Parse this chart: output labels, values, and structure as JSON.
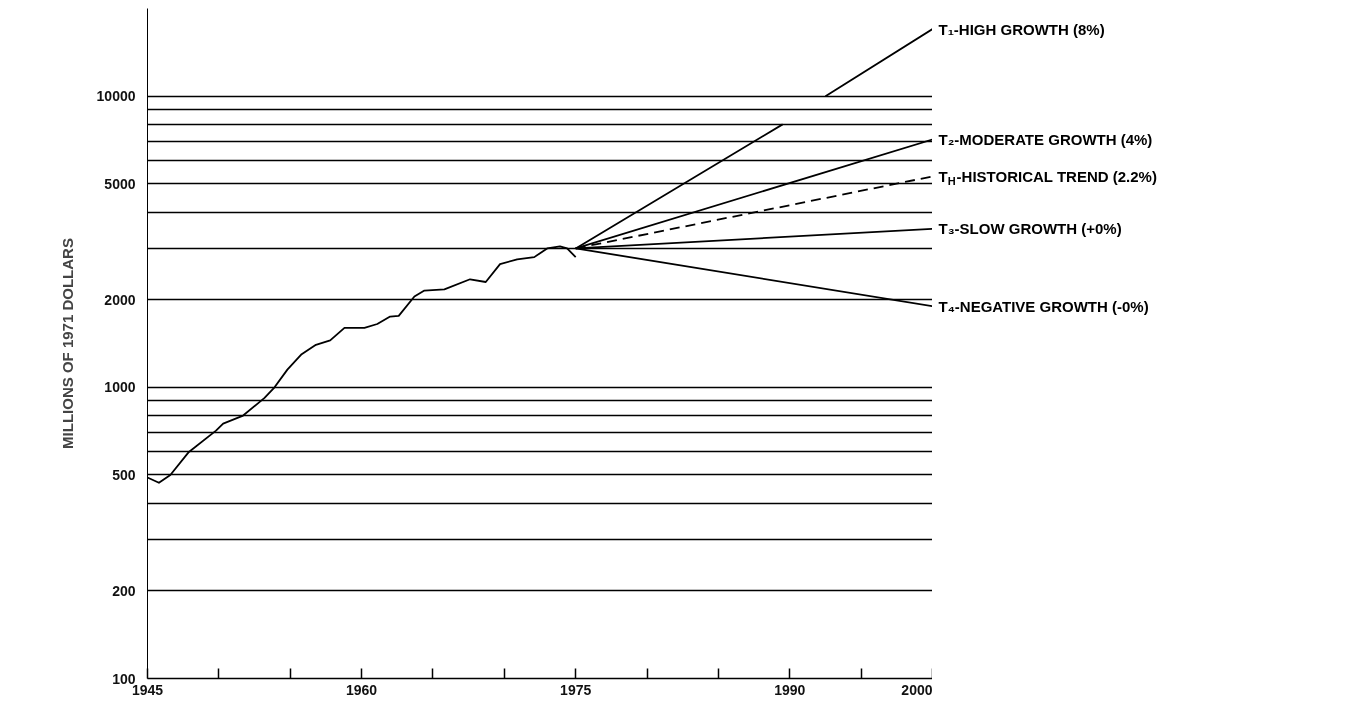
{
  "chart_data": {
    "type": "line",
    "ylabel": "MILLIONS OF 1971 DOLLARS",
    "log": "y",
    "xlim": [
      1945,
      2000
    ],
    "xticks": [
      1945,
      {
        "value": 1950,
        "label": null
      },
      {
        "value": 1955,
        "label": null
      },
      1960,
      {
        "value": 1965,
        "label": null
      },
      {
        "value": 1970,
        "label": null
      },
      1975,
      {
        "value": 1980,
        "label": null
      },
      {
        "value": 1985,
        "label": null
      },
      1990,
      {
        "value": 1995,
        "label": null
      },
      2000
    ],
    "ylim": [
      100,
      20000
    ],
    "yticks": [
      100,
      200,
      {
        "value": 300,
        "label": null
      },
      {
        "value": 400,
        "label": null
      },
      500,
      {
        "value": 600,
        "label": null
      },
      {
        "value": 700,
        "label": null
      },
      {
        "value": 800,
        "label": null
      },
      {
        "value": 900,
        "label": null
      },
      1000,
      2000,
      {
        "value": 3000,
        "label": null
      },
      {
        "value": 4000,
        "label": null
      },
      5000,
      {
        "value": 6000,
        "label": null
      },
      {
        "value": 7000,
        "label": null
      },
      {
        "value": 8000,
        "label": null
      },
      {
        "value": 9000,
        "label": null
      },
      10000
    ],
    "grid": "y",
    "marker": "none",
    "series": [
      {
        "color": "#000000",
        "x": [
          1945,
          1945.8,
          1946.6,
          1947.9,
          1949.8,
          1950.3,
          1951.7,
          1953.2,
          1953.9,
          1954.8,
          1955.8,
          1956.8,
          1957.8,
          1958.8,
          1960.2,
          1961.1,
          1962.0,
          1962.6,
          1963.7,
          1964.4,
          1965.8,
          1967.6,
          1968.7,
          1969.7,
          1970.9,
          1972.1,
          1973.0,
          1973.9,
          1974.4,
          1975.0
        ],
        "values": [
          490,
          470,
          500,
          600,
          710,
          750,
          800,
          920,
          1000,
          1150,
          1300,
          1400,
          1450,
          1600,
          1600,
          1650,
          1750,
          1760,
          2050,
          2150,
          2170,
          2350,
          2300,
          2650,
          2750,
          2800,
          3000,
          3050,
          3000,
          2800
        ]
      },
      {
        "name": "T₁-HIGH GROWTH (8%)",
        "color": "#000000",
        "x": [
          1975,
          1989.5,
          1991,
          1992.5,
          2000
        ],
        "values": [
          3000,
          8000,
          null,
          10000,
          17000
        ]
      },
      {
        "name": "T₂-MODERATE GROWTH (4%)",
        "color": "#000000",
        "x": [
          1975,
          2000
        ],
        "values": [
          3000,
          7100
        ]
      },
      {
        "name": "T$_{H}$-HISTORICAL TREND (2.2%)",
        "color": "#000000",
        "line_style": "dashed",
        "x": [
          1975,
          2000
        ],
        "values": [
          3000,
          5300
        ]
      },
      {
        "name": "T₃-SLOW GROWTH (+0%)",
        "color": "#000000",
        "x": [
          1975,
          2000
        ],
        "values": [
          3000,
          3500
        ]
      },
      {
        "name": "T₄-NEGATIVE GROWTH (-0%)",
        "color": "#000000",
        "x": [
          1975,
          2000
        ],
        "values": [
          3000,
          1900
        ]
      }
    ]
  }
}
